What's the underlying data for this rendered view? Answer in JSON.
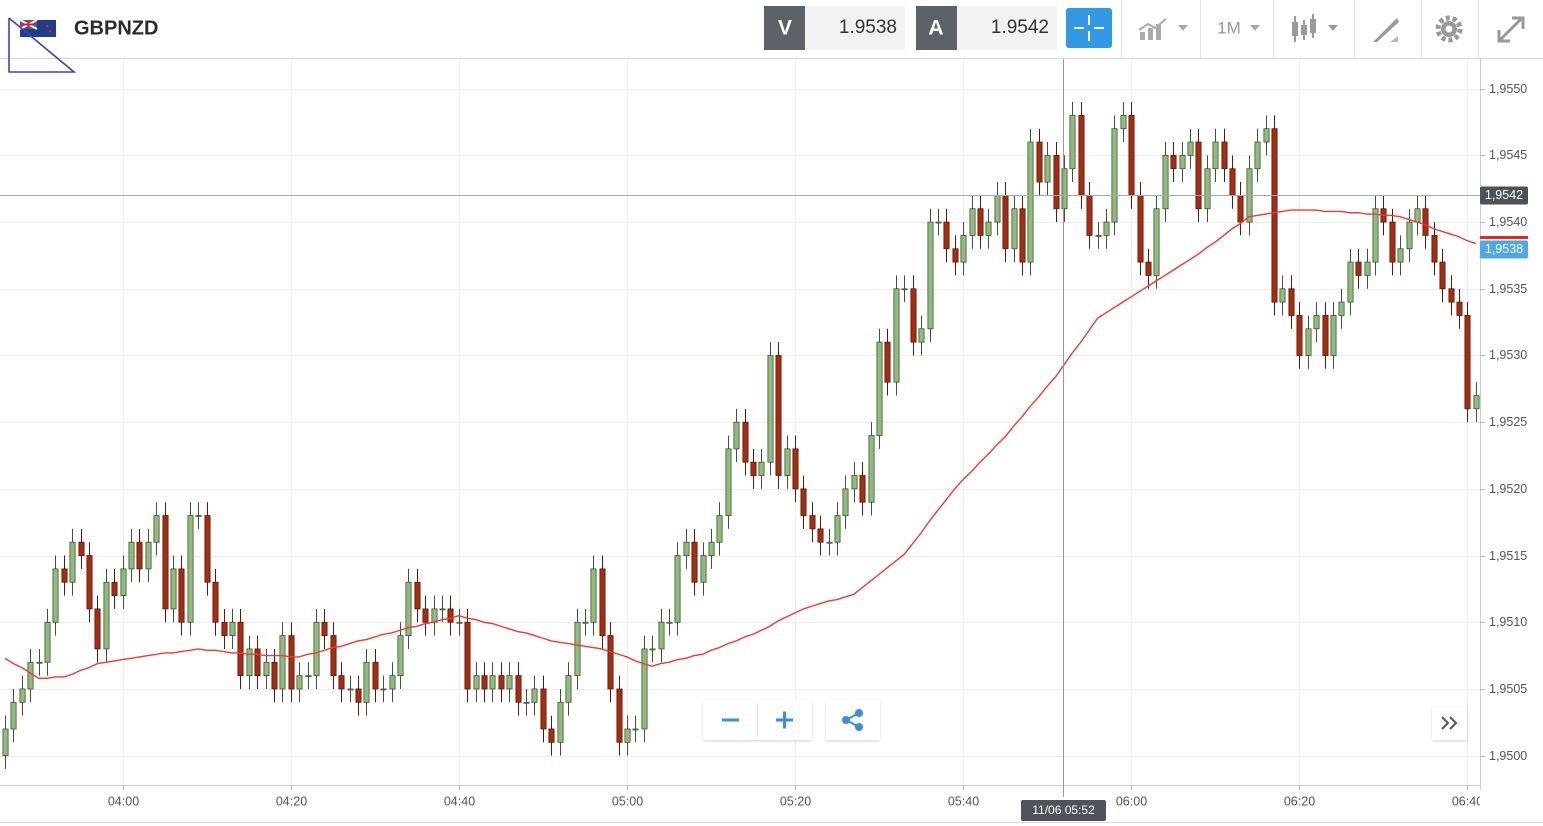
{
  "toolbar": {
    "symbol": "GBPNZD",
    "bid_label": "V",
    "bid": 1.9538,
    "ask_label": "A",
    "ask": 1.9542,
    "timeframe": "1M"
  },
  "chart_data": {
    "type": "candlestick",
    "categories": [
      null,
      null,
      null,
      null,
      null,
      null,
      null,
      null,
      null,
      null,
      null,
      null,
      null,
      null,
      "04:00",
      null,
      null,
      null,
      null,
      null,
      null,
      null,
      null,
      null,
      null,
      null,
      null,
      null,
      null,
      null,
      null,
      null,
      null,
      null,
      "04:20",
      null,
      null,
      null,
      null,
      null,
      null,
      null,
      null,
      null,
      null,
      null,
      null,
      null,
      null,
      null,
      null,
      null,
      null,
      null,
      "04:40",
      null,
      null,
      null,
      null,
      null,
      null,
      null,
      null,
      null,
      null,
      null,
      null,
      null,
      null,
      null,
      null,
      null,
      null,
      null,
      "05:00",
      null,
      null,
      null,
      null,
      null,
      null,
      null,
      null,
      null,
      null,
      null,
      null,
      null,
      null,
      null,
      null,
      null,
      null,
      null,
      "05:20",
      null,
      null,
      null,
      null,
      null,
      null,
      null,
      null,
      null,
      null,
      null,
      null,
      null,
      null,
      null,
      null,
      null,
      null,
      null,
      "05:40",
      null,
      null,
      null,
      null,
      null,
      null,
      null,
      null,
      null,
      null,
      null,
      null,
      null,
      null,
      null,
      null,
      null,
      null,
      null,
      "06:00",
      null,
      null,
      null,
      null,
      null,
      null,
      null,
      null,
      null,
      null,
      null,
      null,
      null,
      null,
      null,
      null,
      null,
      null,
      null,
      "06:20",
      null,
      null,
      null,
      null,
      null,
      null,
      null,
      null,
      null,
      null,
      null,
      null,
      null,
      null,
      null,
      null,
      null,
      null,
      null,
      "06:40",
      null
    ],
    "open": [
      1.95,
      1.9502,
      1.9504,
      1.9505,
      1.9507,
      1.9507,
      1.951,
      1.9514,
      1.9513,
      1.9516,
      1.9515,
      1.9511,
      1.9508,
      1.9513,
      1.9512,
      1.9514,
      1.9516,
      1.9514,
      1.9516,
      1.9518,
      1.9511,
      1.9514,
      1.951,
      1.9518,
      1.9518,
      1.9513,
      1.951,
      1.9509,
      1.951,
      1.9506,
      1.9508,
      1.9506,
      1.9507,
      1.9505,
      1.9509,
      1.9505,
      1.9506,
      1.9506,
      1.951,
      1.9509,
      1.9506,
      1.9505,
      1.9505,
      1.9504,
      1.9507,
      1.9505,
      1.9505,
      1.9506,
      1.9509,
      1.9513,
      1.9511,
      1.951,
      1.9511,
      1.9511,
      1.951,
      1.951,
      1.9505,
      1.9506,
      1.9505,
      1.9506,
      1.9505,
      1.9506,
      1.9504,
      1.9504,
      1.9505,
      1.9502,
      1.9501,
      1.9504,
      1.9506,
      1.951,
      1.951,
      1.9514,
      1.9509,
      1.9505,
      1.9501,
      1.9502,
      1.9502,
      1.9508,
      1.9508,
      1.951,
      1.951,
      1.9515,
      1.9516,
      1.9513,
      1.9515,
      1.9516,
      1.9518,
      1.9523,
      1.9525,
      1.9522,
      1.9521,
      1.9522,
      1.953,
      1.9521,
      1.9523,
      1.952,
      1.9518,
      1.9517,
      1.9516,
      1.9516,
      1.9518,
      1.952,
      1.9521,
      1.9519,
      1.9524,
      1.9531,
      1.9528,
      1.9535,
      1.9535,
      1.9531,
      1.9532,
      1.954,
      1.954,
      1.9538,
      1.9537,
      1.9539,
      1.9541,
      1.9539,
      1.954,
      1.9542,
      1.9538,
      1.9541,
      1.9537,
      1.9546,
      1.9543,
      1.9545,
      1.9541,
      1.9544,
      1.9548,
      1.9542,
      1.9539,
      1.9539,
      1.954,
      1.9547,
      1.9548,
      1.9542,
      1.9537,
      1.9536,
      1.9541,
      1.9545,
      1.9544,
      1.9545,
      1.9546,
      1.9541,
      1.9544,
      1.9546,
      1.9544,
      1.9542,
      1.954,
      1.9544,
      1.9546,
      1.9547,
      1.9534,
      1.9535,
      1.9533,
      1.953,
      1.9532,
      1.9533,
      1.953,
      1.9533,
      1.9534,
      1.9537,
      1.9536,
      1.9537,
      1.9541,
      1.954,
      1.9537,
      1.9538,
      1.954,
      1.9541,
      1.9539,
      1.9537,
      1.9535,
      1.9534,
      1.9533,
      1.9526
    ],
    "high": [
      1.9503,
      1.9505,
      1.9506,
      1.9508,
      1.9508,
      1.9511,
      1.9515,
      1.9515,
      1.9517,
      1.9517,
      1.9516,
      1.9512,
      1.9514,
      1.9514,
      1.9515,
      1.9517,
      1.9517,
      1.9517,
      1.9519,
      1.9519,
      1.9515,
      1.9515,
      1.9519,
      1.9519,
      1.9519,
      1.9514,
      1.9511,
      1.9511,
      1.9511,
      1.9509,
      1.9509,
      1.9508,
      1.9508,
      1.951,
      1.951,
      1.9507,
      1.9507,
      1.9511,
      1.9511,
      1.951,
      1.9507,
      1.9506,
      1.9506,
      1.9508,
      1.9508,
      1.9506,
      1.9507,
      1.951,
      1.9514,
      1.9514,
      1.9512,
      1.9512,
      1.9512,
      1.9512,
      1.9511,
      1.9511,
      1.9507,
      1.9507,
      1.9507,
      1.9507,
      1.9507,
      1.9507,
      1.9505,
      1.9506,
      1.9506,
      1.9503,
      1.9505,
      1.9507,
      1.9511,
      1.9511,
      1.9515,
      1.9515,
      1.951,
      1.9506,
      1.9503,
      1.9503,
      1.9509,
      1.9509,
      1.9511,
      1.9511,
      1.9516,
      1.9517,
      1.9517,
      1.9516,
      1.9517,
      1.9519,
      1.9524,
      1.9526,
      1.9526,
      1.9523,
      1.9523,
      1.9531,
      1.9531,
      1.9524,
      1.9524,
      1.9521,
      1.9519,
      1.9518,
      1.9517,
      1.9519,
      1.9521,
      1.9522,
      1.9522,
      1.9525,
      1.9532,
      1.9532,
      1.9536,
      1.9536,
      1.9536,
      1.9533,
      1.9541,
      1.9541,
      1.9541,
      1.9539,
      1.954,
      1.9542,
      1.9542,
      1.9541,
      1.9543,
      1.9543,
      1.9542,
      1.9542,
      1.9547,
      1.9547,
      1.9546,
      1.9546,
      1.9545,
      1.9549,
      1.9549,
      1.9543,
      1.954,
      1.9541,
      1.9548,
      1.9549,
      1.9549,
      1.9543,
      1.9538,
      1.9542,
      1.9546,
      1.9546,
      1.9546,
      1.9547,
      1.9547,
      1.9545,
      1.9547,
      1.9547,
      1.9545,
      1.9543,
      1.9545,
      1.9547,
      1.9548,
      1.9548,
      1.9536,
      1.9536,
      1.9534,
      1.9533,
      1.9534,
      1.9534,
      1.9534,
      1.9535,
      1.9538,
      1.9538,
      1.9538,
      1.9542,
      1.9542,
      1.9541,
      1.9539,
      1.9541,
      1.9542,
      1.9542,
      1.954,
      1.9538,
      1.9536,
      1.9535,
      1.9534,
      1.9528
    ],
    "low": [
      1.9499,
      1.9501,
      1.9503,
      1.9504,
      1.9506,
      1.9506,
      1.9509,
      1.9512,
      1.9512,
      1.9514,
      1.951,
      1.9507,
      1.9507,
      1.9511,
      1.9511,
      1.9513,
      1.9513,
      1.9513,
      1.9515,
      1.951,
      1.951,
      1.9509,
      1.9509,
      1.9517,
      1.9512,
      1.9509,
      1.9508,
      1.9508,
      1.9505,
      1.9505,
      1.9505,
      1.9505,
      1.9504,
      1.9504,
      1.9504,
      1.9504,
      1.9505,
      1.9505,
      1.9508,
      1.9505,
      1.9504,
      1.9504,
      1.9503,
      1.9503,
      1.9504,
      1.9504,
      1.9504,
      1.9505,
      1.9508,
      1.951,
      1.9509,
      1.9509,
      1.951,
      1.9509,
      1.9509,
      1.9504,
      1.9504,
      1.9504,
      1.9504,
      1.9504,
      1.9504,
      1.9503,
      1.9503,
      1.9503,
      1.9501,
      1.95,
      1.95,
      1.9503,
      1.9505,
      1.9509,
      1.9509,
      1.9508,
      1.9504,
      1.95,
      1.95,
      1.9501,
      1.9501,
      1.9507,
      1.9507,
      1.9509,
      1.9509,
      1.9514,
      1.9512,
      1.9512,
      1.9514,
      1.9515,
      1.9517,
      1.9522,
      1.9521,
      1.952,
      1.952,
      1.9521,
      1.952,
      1.952,
      1.9519,
      1.9517,
      1.9516,
      1.9515,
      1.9515,
      1.9515,
      1.9517,
      1.9519,
      1.9518,
      1.9518,
      1.9523,
      1.9527,
      1.9527,
      1.9534,
      1.953,
      1.953,
      1.9531,
      1.9539,
      1.9537,
      1.9536,
      1.9536,
      1.9538,
      1.9538,
      1.9538,
      1.9539,
      1.9537,
      1.9537,
      1.9536,
      1.9536,
      1.9542,
      1.9542,
      1.954,
      1.954,
      1.9543,
      1.9541,
      1.9538,
      1.9538,
      1.9538,
      1.9539,
      1.9546,
      1.9541,
      1.9536,
      1.9535,
      1.9535,
      1.954,
      1.9543,
      1.9543,
      1.9544,
      1.954,
      1.954,
      1.9543,
      1.9543,
      1.9541,
      1.9539,
      1.9539,
      1.9543,
      1.9545,
      1.9533,
      1.9533,
      1.9532,
      1.9529,
      1.9529,
      1.9531,
      1.9529,
      1.9529,
      1.9532,
      1.9533,
      1.9535,
      1.9535,
      1.9536,
      1.9539,
      1.9536,
      1.9536,
      1.9537,
      1.9539,
      1.9538,
      1.9536,
      1.9534,
      1.9533,
      1.9532,
      1.9525,
      1.9525
    ],
    "close": [
      1.9502,
      1.9504,
      1.9505,
      1.9507,
      1.9507,
      1.951,
      1.9514,
      1.9513,
      1.9516,
      1.9515,
      1.9511,
      1.9508,
      1.9513,
      1.9512,
      1.9514,
      1.9516,
      1.9514,
      1.9516,
      1.9518,
      1.9511,
      1.9514,
      1.951,
      1.9518,
      1.9518,
      1.9513,
      1.951,
      1.9509,
      1.951,
      1.9506,
      1.9508,
      1.9506,
      1.9507,
      1.9505,
      1.9509,
      1.9505,
      1.9506,
      1.9506,
      1.951,
      1.9509,
      1.9506,
      1.9505,
      1.9505,
      1.9504,
      1.9507,
      1.9505,
      1.9505,
      1.9506,
      1.9509,
      1.9513,
      1.9511,
      1.951,
      1.9511,
      1.9511,
      1.951,
      1.951,
      1.9505,
      1.9506,
      1.9505,
      1.9506,
      1.9505,
      1.9506,
      1.9504,
      1.9504,
      1.9505,
      1.9502,
      1.9501,
      1.9504,
      1.9506,
      1.951,
      1.951,
      1.9514,
      1.9509,
      1.9505,
      1.9501,
      1.9502,
      1.9502,
      1.9508,
      1.9508,
      1.951,
      1.951,
      1.9515,
      1.9516,
      1.9513,
      1.9515,
      1.9516,
      1.9518,
      1.9523,
      1.9525,
      1.9522,
      1.9521,
      1.9522,
      1.953,
      1.9521,
      1.9523,
      1.952,
      1.9518,
      1.9517,
      1.9516,
      1.9516,
      1.9518,
      1.952,
      1.9521,
      1.9519,
      1.9524,
      1.9531,
      1.9528,
      1.9535,
      1.9535,
      1.9531,
      1.9532,
      1.954,
      1.954,
      1.9538,
      1.9537,
      1.9539,
      1.9541,
      1.9539,
      1.954,
      1.9542,
      1.9538,
      1.9541,
      1.9537,
      1.9546,
      1.9543,
      1.9545,
      1.9541,
      1.9544,
      1.9548,
      1.9542,
      1.9539,
      1.9539,
      1.954,
      1.9547,
      1.9548,
      1.9542,
      1.9537,
      1.9536,
      1.9541,
      1.9545,
      1.9544,
      1.9545,
      1.9546,
      1.9541,
      1.9544,
      1.9546,
      1.9544,
      1.9542,
      1.954,
      1.9544,
      1.9546,
      1.9547,
      1.9534,
      1.9535,
      1.9533,
      1.953,
      1.9532,
      1.9533,
      1.953,
      1.9533,
      1.9534,
      1.9537,
      1.9536,
      1.9537,
      1.9541,
      1.954,
      1.9537,
      1.9538,
      1.954,
      1.9541,
      1.9539,
      1.9537,
      1.9535,
      1.9534,
      1.9533,
      1.9526,
      1.9527
    ],
    "up_color": "#8fbb7d",
    "down_color": "#a82c12",
    "ma": {
      "color": "#ee3a33",
      "values": [
        1.95073,
        1.95069,
        1.95066,
        1.95062,
        1.95058,
        1.95058,
        1.95059,
        1.95059,
        1.95061,
        1.95064,
        1.95066,
        1.95069,
        1.9507,
        1.95071,
        1.95072,
        1.95073,
        1.95074,
        1.95075,
        1.95076,
        1.95077,
        1.95077,
        1.95078,
        1.95079,
        1.9508,
        1.95079,
        1.95079,
        1.95078,
        1.95077,
        1.95077,
        1.95076,
        1.95076,
        1.95075,
        1.95075,
        1.95075,
        1.95074,
        1.95074,
        1.95076,
        1.95077,
        1.95079,
        1.95081,
        1.95082,
        1.95084,
        1.95086,
        1.95087,
        1.95089,
        1.95091,
        1.95092,
        1.95094,
        1.95096,
        1.95097,
        1.95099,
        1.951,
        1.95102,
        1.95103,
        1.95105,
        1.95103,
        1.95102,
        1.951,
        1.95099,
        1.95097,
        1.95095,
        1.95093,
        1.95092,
        1.9509,
        1.95088,
        1.95086,
        1.95085,
        1.95084,
        1.95083,
        1.95082,
        1.95081,
        1.9508,
        1.95078,
        1.95076,
        1.95074,
        1.95071,
        1.95069,
        1.95067,
        1.95069,
        1.9507,
        1.95072,
        1.95073,
        1.95075,
        1.95076,
        1.95079,
        1.95081,
        1.95084,
        1.95086,
        1.95089,
        1.95091,
        1.95094,
        1.95097,
        1.95101,
        1.95104,
        1.95107,
        1.9511,
        1.95112,
        1.95114,
        1.95116,
        1.95117,
        1.95119,
        1.95121,
        1.95126,
        1.95131,
        1.95136,
        1.95141,
        1.95146,
        1.95151,
        1.95159,
        1.95167,
        1.95176,
        1.95184,
        1.95192,
        1.952,
        1.95207,
        1.95213,
        1.9522,
        1.95226,
        1.95233,
        1.95239,
        1.95247,
        1.95254,
        1.95262,
        1.95269,
        1.95277,
        1.95284,
        1.95293,
        1.95302,
        1.9531,
        1.95319,
        1.95328,
        1.95332,
        1.95336,
        1.9534,
        1.95344,
        1.95348,
        1.95352,
        1.95356,
        1.9536,
        1.95364,
        1.95368,
        1.95372,
        1.95376,
        1.95381,
        1.95385,
        1.9539,
        1.95395,
        1.95399,
        1.95404,
        1.95405,
        1.95406,
        1.95407,
        1.95408,
        1.95409,
        1.95409,
        1.95409,
        1.95409,
        1.95408,
        1.95408,
        1.95408,
        1.95407,
        1.95407,
        1.95406,
        1.95406,
        1.95405,
        1.95405,
        1.95404,
        1.95402,
        1.954,
        1.95398,
        1.95395,
        1.95393,
        1.95391,
        1.95389,
        1.95386,
        1.95384
      ]
    },
    "ylim": [
      1.94978,
      1.95523
    ],
    "yticks": [
      {
        "value": 1.95,
        "label": "1,9500"
      },
      {
        "value": 1.9505,
        "label": "1,9505"
      },
      {
        "value": 1.951,
        "label": "1,9510"
      },
      {
        "value": 1.9515,
        "label": "1,9515"
      },
      {
        "value": 1.952,
        "label": "1,9520"
      },
      {
        "value": 1.9525,
        "label": "1,9525"
      },
      {
        "value": 1.953,
        "label": "1,9530"
      },
      {
        "value": 1.9535,
        "label": "1,9535"
      },
      {
        "value": 1.954,
        "label": "1,9540"
      },
      {
        "value": 1.9545,
        "label": "1,9545"
      },
      {
        "value": 1.955,
        "label": "1,9550"
      }
    ],
    "grid": true,
    "price_lines": [
      {
        "value": 1.9542,
        "label": "1,9542",
        "color": "#4d5259"
      },
      {
        "value": 1.9538,
        "label": "1,9538",
        "color": "#4ea8e2"
      }
    ],
    "crosshair_label": "11/06 05:52"
  }
}
